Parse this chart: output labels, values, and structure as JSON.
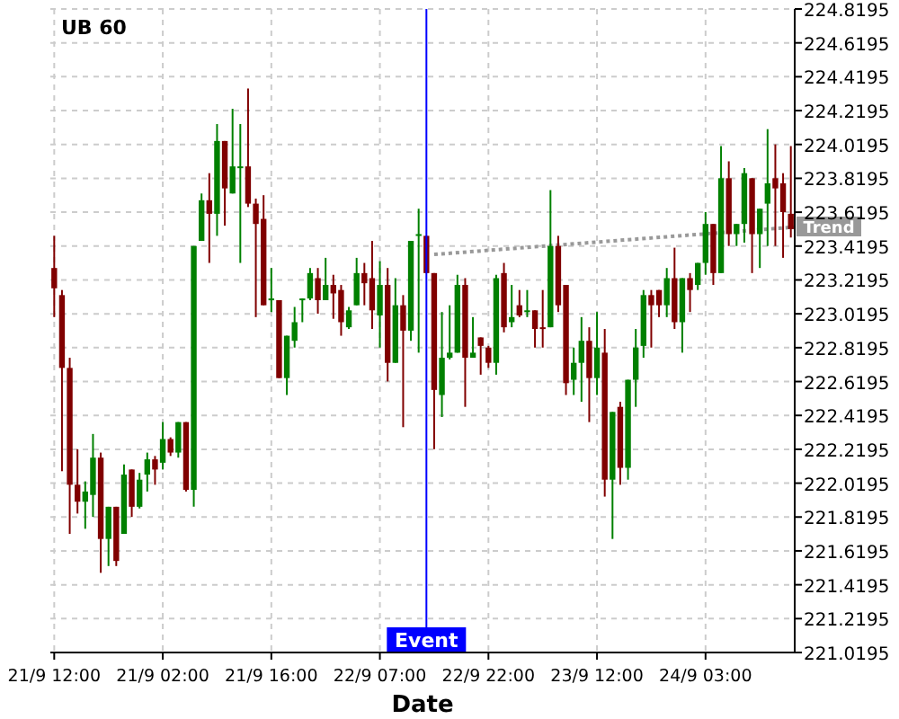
{
  "chart_data": {
    "type": "candlestick",
    "title": "UB 60",
    "xlabel": "Date",
    "categories": [
      "21/9 12:00",
      null,
      null,
      null,
      null,
      null,
      null,
      null,
      null,
      null,
      null,
      null,
      null,
      null,
      "21/9 02:00",
      null,
      null,
      null,
      null,
      null,
      null,
      null,
      null,
      null,
      null,
      null,
      null,
      null,
      "21/9 16:00",
      null,
      null,
      null,
      null,
      null,
      null,
      null,
      null,
      null,
      null,
      null,
      null,
      null,
      "22/9 07:00",
      null,
      null,
      null,
      null,
      null,
      null,
      null,
      null,
      null,
      null,
      null,
      null,
      null,
      "22/9 22:00",
      null,
      null,
      null,
      null,
      null,
      null,
      null,
      null,
      null,
      null,
      null,
      null,
      null,
      "23/9 12:00",
      null,
      null,
      null,
      null,
      null,
      null,
      null,
      null,
      null,
      null,
      null,
      null,
      null,
      "24/9 03:00",
      null,
      null,
      null,
      null,
      null,
      null,
      null,
      null,
      null,
      null,
      null
    ],
    "ohlc": [
      [
        223.29,
        223.48,
        223.0,
        223.17
      ],
      [
        223.13,
        223.16,
        222.09,
        222.7
      ],
      [
        222.7,
        222.76,
        221.72,
        222.01
      ],
      [
        222.01,
        222.22,
        221.84,
        221.91
      ],
      [
        221.91,
        222.03,
        221.75,
        221.97
      ],
      [
        221.95,
        222.31,
        221.82,
        222.17
      ],
      [
        222.17,
        222.2,
        221.49,
        221.69
      ],
      [
        221.69,
        221.88,
        221.53,
        221.88
      ],
      [
        221.88,
        221.88,
        221.53,
        221.56
      ],
      [
        221.72,
        222.13,
        221.72,
        222.07
      ],
      [
        222.1,
        222.1,
        221.82,
        221.88
      ],
      [
        221.88,
        222.08,
        221.87,
        222.04
      ],
      [
        222.07,
        222.2,
        221.97,
        222.16
      ],
      [
        222.16,
        222.18,
        222.01,
        222.1
      ],
      [
        222.14,
        222.38,
        222.1,
        222.28
      ],
      [
        222.28,
        222.29,
        222.18,
        222.2
      ],
      [
        222.2,
        222.38,
        222.17,
        222.38
      ],
      [
        222.38,
        222.38,
        221.97,
        221.98
      ],
      [
        221.98,
        223.42,
        221.88,
        223.42
      ],
      [
        223.45,
        223.73,
        223.45,
        223.69
      ],
      [
        223.69,
        223.85,
        223.32,
        223.61
      ],
      [
        223.61,
        224.14,
        223.48,
        224.04
      ],
      [
        224.04,
        224.04,
        223.54,
        223.76
      ],
      [
        223.73,
        224.23,
        223.73,
        223.89
      ],
      [
        223.89,
        224.14,
        223.32,
        223.89
      ],
      [
        223.89,
        224.35,
        223.65,
        223.67
      ],
      [
        223.67,
        223.7,
        223.0,
        223.55
      ],
      [
        223.58,
        223.72,
        223.07,
        223.07
      ],
      [
        223.11,
        223.29,
        223.03,
        223.11
      ],
      [
        223.1,
        223.1,
        222.64,
        222.64
      ],
      [
        222.64,
        222.89,
        222.54,
        222.89
      ],
      [
        222.86,
        223.06,
        222.82,
        222.97
      ],
      [
        223.11,
        223.11,
        222.97,
        223.11
      ],
      [
        223.11,
        223.29,
        223.1,
        223.26
      ],
      [
        223.23,
        223.29,
        223.02,
        223.1
      ],
      [
        223.1,
        223.35,
        223.1,
        223.19
      ],
      [
        223.19,
        223.25,
        222.99,
        223.14
      ],
      [
        223.16,
        223.19,
        222.89,
        222.97
      ],
      [
        222.94,
        223.06,
        222.93,
        223.04
      ],
      [
        223.07,
        223.35,
        223.07,
        223.26
      ],
      [
        223.26,
        223.32,
        223.07,
        223.2
      ],
      [
        223.23,
        223.45,
        222.93,
        223.04
      ],
      [
        223.01,
        223.33,
        222.82,
        223.19
      ],
      [
        223.19,
        223.29,
        222.62,
        222.73
      ],
      [
        222.73,
        223.23,
        222.73,
        223.07
      ],
      [
        223.07,
        223.13,
        222.35,
        222.92
      ],
      [
        222.92,
        223.45,
        222.86,
        223.45
      ],
      [
        223.49,
        223.64,
        222.79,
        223.49
      ],
      [
        223.48,
        223.48,
        223.26,
        223.26
      ],
      [
        223.26,
        223.26,
        222.22,
        222.57
      ],
      [
        222.54,
        223.03,
        222.41,
        222.76
      ],
      [
        222.76,
        223.07,
        222.75,
        222.79
      ],
      [
        222.79,
        223.25,
        222.79,
        223.19
      ],
      [
        223.19,
        223.23,
        222.47,
        222.76
      ],
      [
        222.76,
        223.0,
        222.76,
        222.79
      ],
      [
        222.88,
        222.88,
        222.66,
        222.83
      ],
      [
        222.82,
        222.83,
        222.7,
        222.73
      ],
      [
        222.73,
        223.25,
        222.66,
        223.23
      ],
      [
        223.26,
        223.32,
        222.91,
        222.94
      ],
      [
        222.97,
        223.19,
        222.94,
        223.0
      ],
      [
        223.07,
        223.16,
        223.0,
        223.01
      ],
      [
        223.04,
        223.16,
        223.0,
        223.04
      ],
      [
        223.04,
        223.04,
        222.82,
        222.93
      ],
      [
        222.94,
        223.16,
        222.82,
        222.93
      ],
      [
        222.94,
        223.75,
        222.94,
        223.42
      ],
      [
        223.42,
        223.48,
        223.03,
        223.07
      ],
      [
        223.19,
        223.19,
        222.54,
        222.61
      ],
      [
        222.63,
        222.82,
        222.54,
        222.73
      ],
      [
        222.73,
        223.0,
        222.5,
        222.86
      ],
      [
        222.86,
        222.94,
        222.38,
        222.64
      ],
      [
        222.64,
        223.03,
        222.54,
        222.82
      ],
      [
        222.79,
        222.93,
        221.94,
        222.04
      ],
      [
        222.04,
        222.44,
        221.69,
        222.44
      ],
      [
        222.47,
        222.5,
        222.01,
        222.11
      ],
      [
        222.11,
        222.63,
        222.04,
        222.63
      ],
      [
        222.63,
        222.93,
        222.47,
        222.82
      ],
      [
        222.83,
        223.16,
        222.76,
        223.13
      ],
      [
        223.13,
        223.16,
        222.82,
        223.07
      ],
      [
        223.16,
        223.16,
        223.0,
        223.07
      ],
      [
        223.07,
        223.29,
        223.0,
        223.23
      ],
      [
        223.23,
        223.41,
        222.93,
        222.97
      ],
      [
        222.97,
        223.23,
        222.79,
        223.23
      ],
      [
        223.23,
        223.26,
        223.03,
        223.16
      ],
      [
        223.19,
        223.32,
        223.16,
        223.32
      ],
      [
        223.32,
        223.62,
        223.25,
        223.55
      ],
      [
        223.55,
        223.55,
        223.19,
        223.26
      ],
      [
        223.26,
        224.01,
        223.26,
        223.82
      ],
      [
        223.82,
        223.92,
        223.42,
        223.49
      ],
      [
        223.49,
        223.55,
        223.42,
        223.55
      ],
      [
        223.55,
        223.88,
        223.44,
        223.85
      ],
      [
        223.82,
        223.82,
        223.26,
        223.49
      ],
      [
        223.49,
        223.64,
        223.29,
        223.64
      ],
      [
        223.67,
        224.11,
        223.42,
        223.79
      ],
      [
        223.82,
        224.02,
        223.42,
        223.76
      ],
      [
        223.79,
        223.85,
        223.35,
        223.62
      ],
      [
        223.61,
        224.01,
        223.47,
        223.52
      ]
    ],
    "colors": [
      "#800000",
      "#800000",
      "#800000",
      "#800000",
      "#008000",
      "#008000",
      "#800000",
      "#008000",
      "#800000",
      "#008000",
      "#800000",
      "#008000",
      "#008000",
      "#800000",
      "#008000",
      "#800000",
      "#008000",
      "#800000",
      "#008000",
      "#008000",
      "#800000",
      "#008000",
      "#800000",
      "#008000",
      "#008000",
      "#800000",
      "#800000",
      "#800000",
      "#008000",
      "#800000",
      "#008000",
      "#008000",
      "#008000",
      "#008000",
      "#800000",
      "#008000",
      "#800000",
      "#800000",
      "#008000",
      "#008000",
      "#800000",
      "#800000",
      "#008000",
      "#800000",
      "#008000",
      "#800000",
      "#008000",
      "#008000",
      "#800000",
      "#800000",
      "#008000",
      "#008000",
      "#008000",
      "#800000",
      "#008000",
      "#800000",
      "#800000",
      "#008000",
      "#800000",
      "#008000",
      "#800000",
      "#008000",
      "#800000",
      "#800000",
      "#008000",
      "#800000",
      "#800000",
      "#008000",
      "#008000",
      "#800000",
      "#008000",
      "#800000",
      "#008000",
      "#800000",
      "#008000",
      "#008000",
      "#008000",
      "#800000",
      "#800000",
      "#008000",
      "#800000",
      "#008000",
      "#800000",
      "#008000",
      "#008000",
      "#800000",
      "#008000",
      "#800000",
      "#008000",
      "#008000",
      "#800000",
      "#008000",
      "#008000",
      "#800000",
      "#800000",
      "#800000"
    ],
    "series": [
      {
        "name": "Trend",
        "type": "line",
        "color": "#999999",
        "line_style": "dotted",
        "values": [
          null,
          null,
          null,
          null,
          null,
          null,
          null,
          null,
          null,
          null,
          null,
          null,
          null,
          null,
          null,
          null,
          null,
          null,
          null,
          null,
          null,
          null,
          null,
          null,
          null,
          null,
          null,
          null,
          null,
          null,
          null,
          null,
          null,
          null,
          null,
          null,
          null,
          null,
          null,
          null,
          null,
          null,
          null,
          null,
          null,
          null,
          null,
          null,
          null,
          223.37,
          null,
          null,
          null,
          null,
          null,
          null,
          null,
          null,
          null,
          null,
          null,
          null,
          null,
          null,
          null,
          null,
          null,
          null,
          null,
          null,
          null,
          null,
          null,
          null,
          null,
          null,
          null,
          null,
          null,
          null,
          null,
          null,
          null,
          null,
          null,
          null,
          null,
          null,
          null,
          null,
          null,
          null,
          null,
          null,
          null,
          223.53
        ]
      }
    ],
    "ylim": [
      221.0195,
      224.8195
    ],
    "yticks": [
      221.0195,
      221.2195,
      221.4195,
      221.6195,
      221.8195,
      222.0195,
      222.2195,
      222.4195,
      222.6195,
      222.8195,
      223.0195,
      223.2195,
      223.4195,
      223.6195,
      223.8195,
      224.0195,
      224.2195,
      224.4195,
      224.6195,
      224.8195
    ],
    "annotations": [
      "Event"
    ],
    "grid": true
  }
}
